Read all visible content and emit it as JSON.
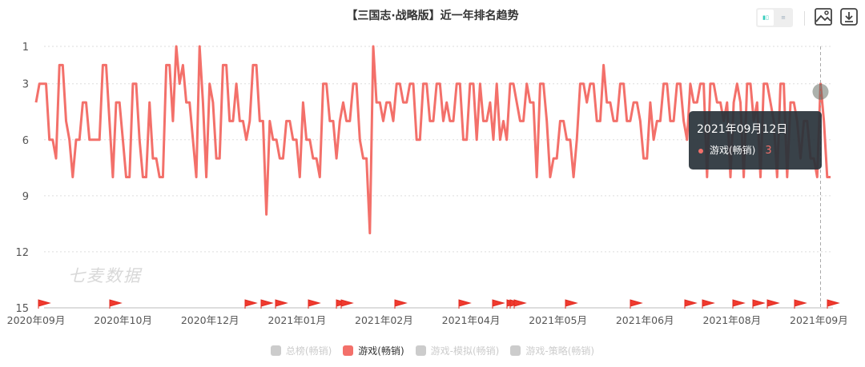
{
  "header": {
    "title": "【三国志·战略版】近一年排名趋势",
    "toggle_chart_icon": "bar-chart-icon",
    "toggle_list_icon": "list-icon",
    "save_image_icon": "image-icon",
    "download_icon": "download-icon"
  },
  "watermark": "七麦数据",
  "tooltip": {
    "date": "2021年09月12日",
    "series": "游戏(畅销)",
    "value": "3"
  },
  "legend": [
    {
      "label": "总榜(畅销)",
      "active": false,
      "color": "#cccccc"
    },
    {
      "label": "游戏(畅销)",
      "active": true,
      "color": "#f3706a"
    },
    {
      "label": "游戏-模拟(畅销)",
      "active": false,
      "color": "#cccccc"
    },
    {
      "label": "游戏-策略(畅销)",
      "active": false,
      "color": "#cccccc"
    }
  ],
  "chart_data": {
    "type": "line",
    "title": "【三国志·战略版】近一年排名趋势",
    "ylabel": "",
    "xlabel": "",
    "ylim": [
      1,
      15
    ],
    "y_inverted": true,
    "yticks": [
      1,
      3,
      6,
      9,
      12,
      15
    ],
    "xticks": [
      "2020年09月",
      "2020年10月",
      "2020年12月",
      "2021年01月",
      "2021年02月",
      "2021年04月",
      "2021年05月",
      "2021年06月",
      "2021年08月",
      "2021年09月"
    ],
    "grid": true,
    "legend_position": "bottom",
    "series": [
      {
        "name": "游戏(畅销)",
        "color": "#f3706a",
        "values": [
          4,
          3,
          3,
          3,
          6,
          6,
          7,
          2,
          2,
          5,
          6,
          8,
          6,
          6,
          4,
          4,
          6,
          6,
          6,
          6,
          2,
          2,
          5,
          8,
          4,
          4,
          6,
          8,
          8,
          3,
          3,
          6,
          8,
          8,
          4,
          7,
          7,
          8,
          8,
          2,
          2,
          5,
          1,
          3,
          2,
          4,
          4,
          6,
          8,
          1,
          4,
          8,
          3,
          4,
          7,
          7,
          2,
          2,
          5,
          5,
          3,
          5,
          5,
          6,
          5,
          2,
          2,
          5,
          5,
          10,
          5,
          6,
          6,
          7,
          7,
          5,
          5,
          6,
          6,
          8,
          4,
          6,
          6,
          7,
          7,
          8,
          3,
          3,
          5,
          5,
          7,
          5,
          4,
          5,
          5,
          3,
          3,
          6,
          7,
          7,
          11,
          1,
          4,
          4,
          5,
          4,
          4,
          5,
          3,
          3,
          4,
          4,
          3,
          3,
          6,
          6,
          3,
          3,
          5,
          5,
          3,
          3,
          5,
          4,
          5,
          5,
          3,
          3,
          6,
          6,
          3,
          3,
          6,
          3,
          5,
          5,
          4,
          6,
          3,
          6,
          5,
          6,
          3,
          3,
          4,
          5,
          5,
          3,
          4,
          4,
          8,
          3,
          3,
          5,
          8,
          7,
          7,
          5,
          5,
          6,
          6,
          8,
          6,
          3,
          3,
          4,
          3,
          3,
          5,
          5,
          2,
          4,
          4,
          5,
          5,
          3,
          3,
          5,
          5,
          4,
          4,
          5,
          7,
          7,
          4,
          6,
          5,
          5,
          3,
          3,
          5,
          5,
          3,
          3,
          5,
          6,
          3,
          4,
          4,
          3,
          3,
          8,
          3,
          3,
          4,
          4,
          5,
          4,
          8,
          4,
          3,
          4,
          8,
          3,
          3,
          5,
          4,
          8,
          3,
          3,
          4,
          5,
          8,
          3,
          3,
          8,
          4,
          4,
          5,
          7,
          5,
          5,
          7,
          7,
          8,
          3,
          5,
          8,
          8
        ]
      }
    ],
    "highlight": {
      "date": "2021年09月12日",
      "value": 3
    }
  }
}
